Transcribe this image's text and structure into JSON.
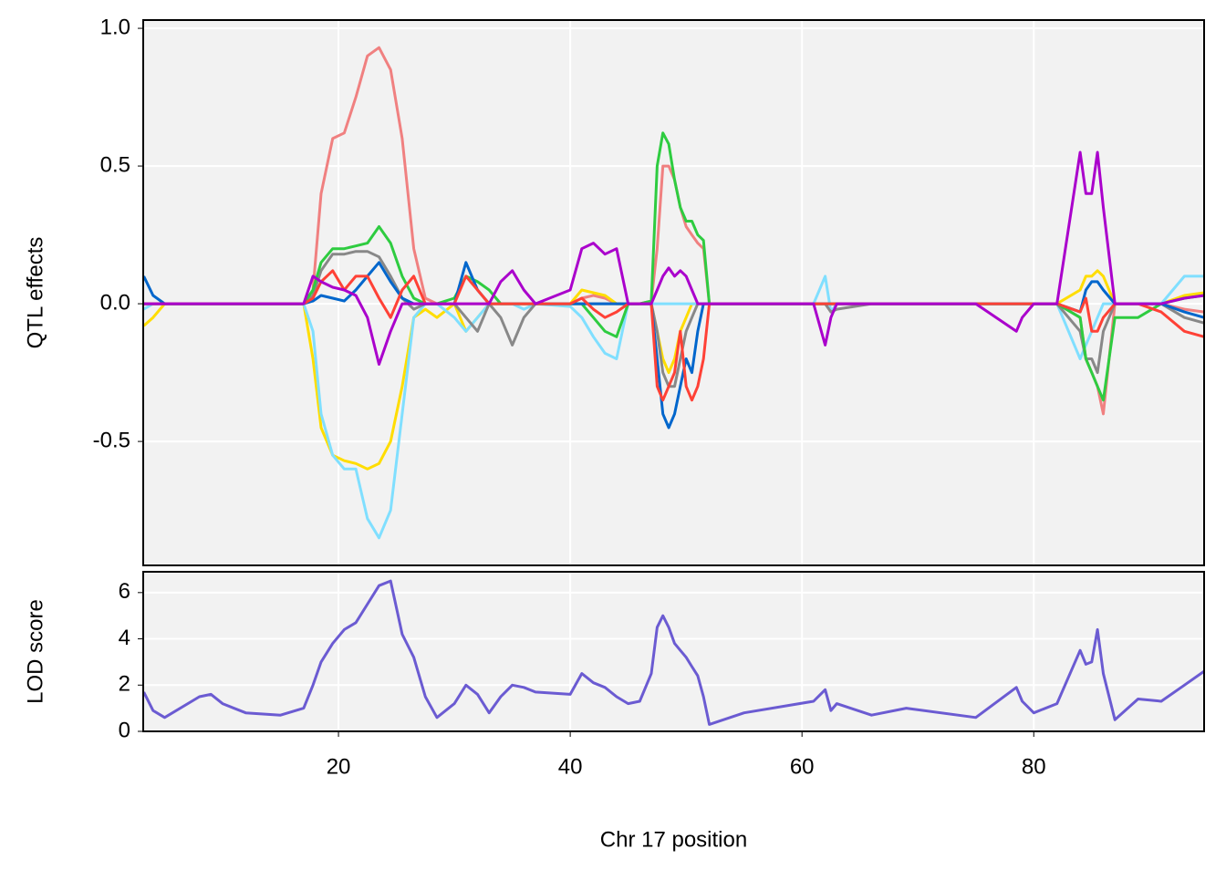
{
  "chart_data": [
    {
      "type": "line",
      "ylabel": "QTL effects",
      "x": [
        3.2,
        4,
        5,
        8,
        9,
        10,
        12,
        15,
        17,
        17.8,
        18.5,
        19.5,
        20.5,
        21.5,
        22.5,
        23.5,
        24.5,
        25.5,
        26.5,
        27.5,
        28.5,
        30,
        31,
        32,
        33,
        34,
        35,
        36,
        37,
        40,
        41,
        42,
        43,
        44,
        45,
        46,
        47,
        47.5,
        48,
        48.5,
        49,
        49.5,
        50,
        50.5,
        51,
        51.5,
        52,
        55,
        61,
        62,
        62.5,
        63,
        66,
        69,
        75,
        78.5,
        79,
        80,
        82,
        84,
        84.5,
        85,
        85.5,
        86,
        87,
        89,
        91,
        93,
        94.7
      ],
      "series": [
        {
          "color": "#f08080",
          "values": [
            0,
            0,
            0,
            0,
            0,
            0,
            0,
            0,
            0,
            0.05,
            0.4,
            0.6,
            0.62,
            0.75,
            0.9,
            0.93,
            0.85,
            0.6,
            0.2,
            0.02,
            0,
            0,
            0,
            0,
            0,
            0,
            0,
            0,
            0,
            0,
            0.02,
            0.03,
            0.02,
            0,
            0,
            0,
            0.01,
            0.2,
            0.5,
            0.5,
            0.45,
            0.35,
            0.28,
            0.25,
            0.22,
            0.2,
            0,
            0,
            0,
            0,
            0,
            0,
            0,
            0,
            0,
            0,
            0,
            0,
            0,
            -0.05,
            -0.2,
            -0.25,
            -0.3,
            -0.4,
            0,
            0,
            0,
            -0.02,
            -0.03
          ]
        },
        {
          "color": "#ffdd00",
          "values": [
            -0.08,
            -0.05,
            0,
            0,
            0,
            0,
            0,
            0,
            0,
            -0.2,
            -0.45,
            -0.55,
            -0.57,
            -0.58,
            -0.6,
            -0.58,
            -0.5,
            -0.3,
            -0.05,
            -0.02,
            -0.05,
            0,
            -0.1,
            -0.05,
            0,
            0,
            0,
            0,
            0,
            0,
            0.05,
            0.04,
            0.03,
            0,
            0,
            0,
            0,
            -0.1,
            -0.2,
            -0.25,
            -0.2,
            -0.1,
            -0.05,
            0,
            0,
            0,
            0,
            0,
            0,
            0,
            0,
            0,
            0,
            0,
            0,
            0,
            0,
            0,
            0,
            0.05,
            0.1,
            0.1,
            0.12,
            0.1,
            0,
            0,
            0,
            0.03,
            0.04
          ]
        },
        {
          "color": "#80dfff",
          "values": [
            -0.02,
            0,
            0,
            0,
            0,
            0,
            0,
            0,
            0,
            -0.1,
            -0.4,
            -0.55,
            -0.6,
            -0.6,
            -0.78,
            -0.85,
            -0.75,
            -0.4,
            -0.05,
            0,
            0,
            -0.05,
            -0.1,
            -0.05,
            0,
            0,
            0,
            -0.02,
            0,
            -0.01,
            -0.05,
            -0.12,
            -0.18,
            -0.2,
            0,
            0,
            0,
            0,
            0,
            0,
            0,
            0,
            0,
            0,
            0,
            0,
            0,
            0,
            0,
            0.1,
            -0.03,
            0,
            0,
            0,
            0,
            0,
            0,
            0,
            0,
            -0.2,
            -0.15,
            -0.1,
            -0.05,
            0,
            0,
            0,
            0,
            0.1,
            0.1
          ]
        },
        {
          "color": "#888888",
          "values": [
            0,
            0,
            0,
            0,
            0,
            0,
            0,
            0,
            0,
            0.03,
            0.12,
            0.18,
            0.18,
            0.19,
            0.19,
            0.17,
            0.1,
            0.02,
            -0.02,
            0,
            0,
            0,
            -0.05,
            -0.1,
            0,
            -0.05,
            -0.15,
            -0.05,
            0,
            0,
            0,
            0,
            0,
            0,
            0,
            0,
            0,
            -0.1,
            -0.25,
            -0.3,
            -0.3,
            -0.2,
            -0.1,
            -0.05,
            0,
            0,
            0,
            0,
            0,
            0,
            -0.03,
            -0.02,
            0,
            0,
            0,
            0,
            0,
            0,
            0,
            -0.1,
            -0.2,
            -0.2,
            -0.25,
            -0.1,
            0,
            0,
            0,
            -0.05,
            -0.07
          ]
        },
        {
          "color": "#2ecc40",
          "values": [
            0,
            0,
            0,
            0,
            0,
            0,
            0,
            0,
            0,
            0.05,
            0.15,
            0.2,
            0.2,
            0.21,
            0.22,
            0.28,
            0.22,
            0.1,
            0.02,
            0,
            0,
            0.02,
            0.1,
            0.08,
            0.05,
            0,
            0,
            0,
            0,
            0,
            0,
            -0.05,
            -0.1,
            -0.12,
            0,
            0,
            0.01,
            0.5,
            0.62,
            0.58,
            0.45,
            0.35,
            0.3,
            0.3,
            0.25,
            0.23,
            0,
            0,
            0,
            0,
            0,
            0,
            0,
            0,
            0,
            0,
            0,
            0,
            0,
            -0.05,
            -0.2,
            -0.25,
            -0.3,
            -0.35,
            -0.05,
            -0.05,
            0,
            0.02,
            0.03
          ]
        },
        {
          "color": "#0066cc",
          "values": [
            0.1,
            0.03,
            0,
            0,
            0,
            0,
            0,
            0,
            0,
            0.01,
            0.03,
            0.02,
            0.01,
            0.05,
            0.1,
            0.15,
            0.08,
            0.02,
            0,
            0,
            0,
            0,
            0.15,
            0.05,
            0,
            0,
            0,
            0,
            0,
            0,
            0,
            0,
            0,
            0,
            0,
            0,
            0,
            -0.2,
            -0.4,
            -0.45,
            -0.4,
            -0.3,
            -0.2,
            -0.25,
            -0.1,
            0,
            0,
            0,
            0,
            0,
            0,
            0,
            0,
            0,
            0,
            0,
            0,
            0,
            0,
            -0.03,
            0.05,
            0.08,
            0.08,
            0.05,
            0,
            0,
            0,
            -0.03,
            -0.05
          ]
        },
        {
          "color": "#ff4136",
          "values": [
            0,
            0,
            0,
            0,
            0,
            0,
            0,
            0,
            0,
            0.02,
            0.08,
            0.12,
            0.05,
            0.1,
            0.1,
            0.02,
            -0.05,
            0.05,
            0.1,
            0,
            0,
            0,
            0.1,
            0.05,
            0,
            0,
            0,
            0,
            0,
            0,
            0.02,
            -0.02,
            -0.05,
            -0.03,
            0,
            0,
            0,
            -0.3,
            -0.35,
            -0.3,
            -0.25,
            -0.1,
            -0.3,
            -0.35,
            -0.3,
            -0.2,
            0,
            0,
            0,
            0,
            0,
            0,
            0,
            0,
            0,
            0,
            0,
            0,
            0,
            -0.03,
            0.02,
            -0.1,
            -0.1,
            -0.05,
            0,
            0,
            -0.03,
            -0.1,
            -0.12
          ]
        },
        {
          "color": "#aa00cc",
          "values": [
            0,
            0,
            0,
            0,
            0,
            0,
            0,
            0,
            0,
            0.1,
            0.08,
            0.06,
            0.05,
            0.03,
            -0.05,
            -0.22,
            -0.1,
            0,
            0,
            0,
            0,
            0,
            0,
            0,
            0,
            0.08,
            0.12,
            0.05,
            0,
            0.05,
            0.2,
            0.22,
            0.18,
            0.2,
            0,
            0,
            0,
            0.05,
            0.1,
            0.13,
            0.1,
            0.12,
            0.1,
            0.05,
            0,
            0,
            0,
            0,
            0,
            -0.15,
            -0.05,
            0,
            0,
            0,
            0,
            -0.1,
            -0.05,
            0,
            0,
            0.55,
            0.4,
            0.4,
            0.55,
            0.35,
            0,
            0,
            0,
            0.02,
            0.03
          ]
        }
      ],
      "xlim": [
        3.15,
        94.7
      ],
      "ylim": [
        -0.95,
        1.03
      ],
      "xticks": [
        20,
        40,
        60,
        80
      ],
      "yticks": [
        {
          "value": 1,
          "label": "1.0"
        },
        {
          "value": 0.5,
          "label": "0.5"
        },
        {
          "value": 0,
          "label": "0.0"
        },
        {
          "value": -0.5,
          "label": "-0.5"
        }
      ],
      "grid": true
    },
    {
      "type": "line",
      "ylabel": "LOD score",
      "xlabel": "Chr 17 position",
      "color": "#6b5bd2",
      "values": [
        1.7,
        0.9,
        0.6,
        1.5,
        1.6,
        1.2,
        0.8,
        0.7,
        1,
        2,
        3,
        3.8,
        4.4,
        4.7,
        5.5,
        6.3,
        6.5,
        4.2,
        3.2,
        1.5,
        0.6,
        1.2,
        2,
        1.6,
        0.8,
        1.5,
        2,
        1.9,
        1.7,
        1.6,
        2.5,
        2.1,
        1.9,
        1.5,
        1.2,
        1.3,
        2.5,
        4.5,
        5,
        4.5,
        3.8,
        3.5,
        3.2,
        2.8,
        2.4,
        1.5,
        0.3,
        0.8,
        1.3,
        1.8,
        0.9,
        1.2,
        0.7,
        1,
        0.6,
        1.9,
        1.3,
        0.8,
        1.2,
        3.5,
        2.9,
        3,
        4.4,
        2.5,
        0.5,
        1.4,
        1.3,
        2,
        2.6
      ],
      "xlim": [
        3.15,
        94.7
      ],
      "ylim": [
        0,
        6.9
      ],
      "xticks": [
        20,
        40,
        60,
        80
      ],
      "yticks": [
        0,
        2,
        4,
        6
      ],
      "grid": true
    }
  ]
}
